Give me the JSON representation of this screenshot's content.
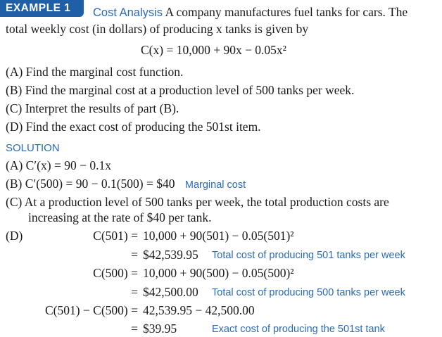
{
  "header": {
    "badge": "EXAMPLE 1",
    "title": "Cost Analysis",
    "intro_1": "A company manufactures fuel tanks for cars. The",
    "intro_2": "total weekly cost (in dollars) of producing x tanks is given by"
  },
  "formula": "C(x) = 10,000 + 90x − 0.05x²",
  "questions": [
    "(A) Find the marginal cost function.",
    "(B) Find the marginal cost at a production level of 500 tanks per week.",
    "(C) Interpret the results of part (B).",
    "(D) Find the exact cost of producing the 501st item."
  ],
  "solution": {
    "heading": "SOLUTION",
    "a": "(A) C′(x) = 90 − 0.1x",
    "b": "(B) C′(500) = 90 − 0.1(500) = $40",
    "b_note": "Marginal cost",
    "c_1": "(C) At a production level of 500 tanks per week, the total production costs are",
    "c_2": "increasing at the rate of $40 per tank.",
    "d_label": "(D)",
    "d_rows": [
      {
        "lhs": "C(501) =",
        "rhs": "10,000 + 90(501) − 0.05(501)²",
        "note": ""
      },
      {
        "lhs": "=",
        "rhs": "$42,539.95",
        "note": "Total cost of producing 501 tanks per week"
      },
      {
        "lhs": "C(500) =",
        "rhs": "10,000 + 90(500) − 0.05(500)²",
        "note": ""
      },
      {
        "lhs": "=",
        "rhs": "$42,500.00",
        "note": "Total cost of producing 500 tanks per week"
      },
      {
        "lhs": "C(501) − C(500) =",
        "rhs": "42,539.95 − 42,500.00",
        "note": ""
      },
      {
        "lhs": "=",
        "rhs": "$39.95",
        "note": "Exact cost of producing the 501st tank"
      }
    ]
  }
}
